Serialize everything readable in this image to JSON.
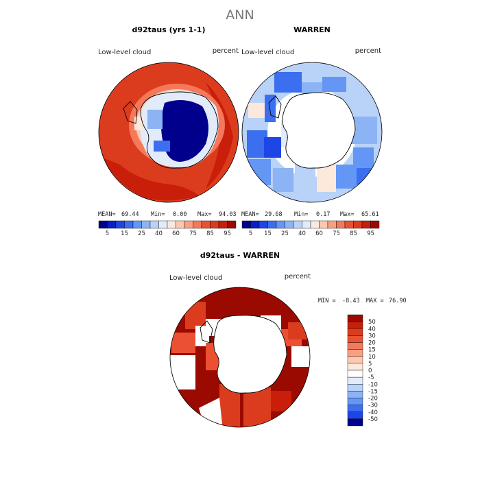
{
  "title": "ANN",
  "panels": [
    {
      "title": "d92taus (yrs 1-1)",
      "left_label": "Low-level cloud",
      "right_label": "percent",
      "stats": {
        "mean_label": "MEAN=",
        "mean": "69.44",
        "min_label": "Min=",
        "min": "0.00",
        "max_label": "Max=",
        "max": "94.03"
      }
    },
    {
      "title": "WARREN",
      "left_label": "Low-level cloud",
      "right_label": "percent",
      "stats": {
        "mean_label": "MEAN=",
        "mean": "29.68",
        "min_label": "Min=",
        "min": "0.17",
        "max_label": "Max=",
        "max": "65.61"
      }
    },
    {
      "title": "d92taus - WARREN",
      "left_label": "Low-level cloud",
      "right_label": "percent",
      "stats": {
        "min_label": "MIN =",
        "min": "-8.43",
        "max_label": "MAX =",
        "max": "76.90"
      }
    }
  ],
  "chart_data": [
    {
      "type": "heatmap",
      "projection": "south-polar",
      "units": "percent",
      "colorbar": {
        "orientation": "horizontal",
        "ticks": [
          "5",
          "15",
          "25",
          "40",
          "60",
          "75",
          "85",
          "95"
        ],
        "levels": [
          0,
          5,
          10,
          15,
          20,
          25,
          30,
          40,
          50,
          60,
          70,
          75,
          80,
          85,
          90,
          95,
          100
        ],
        "colors": [
          "#00008c",
          "#0a1ec8",
          "#1e46e6",
          "#3c6ef0",
          "#6496f5",
          "#8cb4f5",
          "#b9d2f8",
          "#e1ebfa",
          "#fde8dc",
          "#fcc8b0",
          "#faa082",
          "#f5785a",
          "#eb5032",
          "#dc3c1e",
          "#c81e0a",
          "#9b0a00"
        ]
      }
    },
    {
      "type": "heatmap",
      "projection": "south-polar",
      "units": "percent",
      "colorbar": {
        "orientation": "horizontal",
        "ticks": [
          "5",
          "15",
          "25",
          "40",
          "60",
          "75",
          "85",
          "95"
        ]
      }
    },
    {
      "type": "heatmap",
      "projection": "south-polar",
      "units": "percent",
      "colorbar": {
        "orientation": "vertical",
        "ticks": [
          "50",
          "40",
          "30",
          "20",
          "15",
          "10",
          "5",
          "0",
          "-5",
          "-10",
          "-15",
          "-20",
          "-30",
          "-40",
          "-50"
        ],
        "colors": [
          "#9b0a00",
          "#c81e0a",
          "#dc3c1e",
          "#eb5032",
          "#f5785a",
          "#faa082",
          "#fcc8b0",
          "#fde8dc",
          "#ffffff",
          "#e1ebfa",
          "#b9d2f8",
          "#8cb4f5",
          "#6496f5",
          "#3c6ef0",
          "#1e46e6",
          "#00008c"
        ]
      }
    }
  ]
}
